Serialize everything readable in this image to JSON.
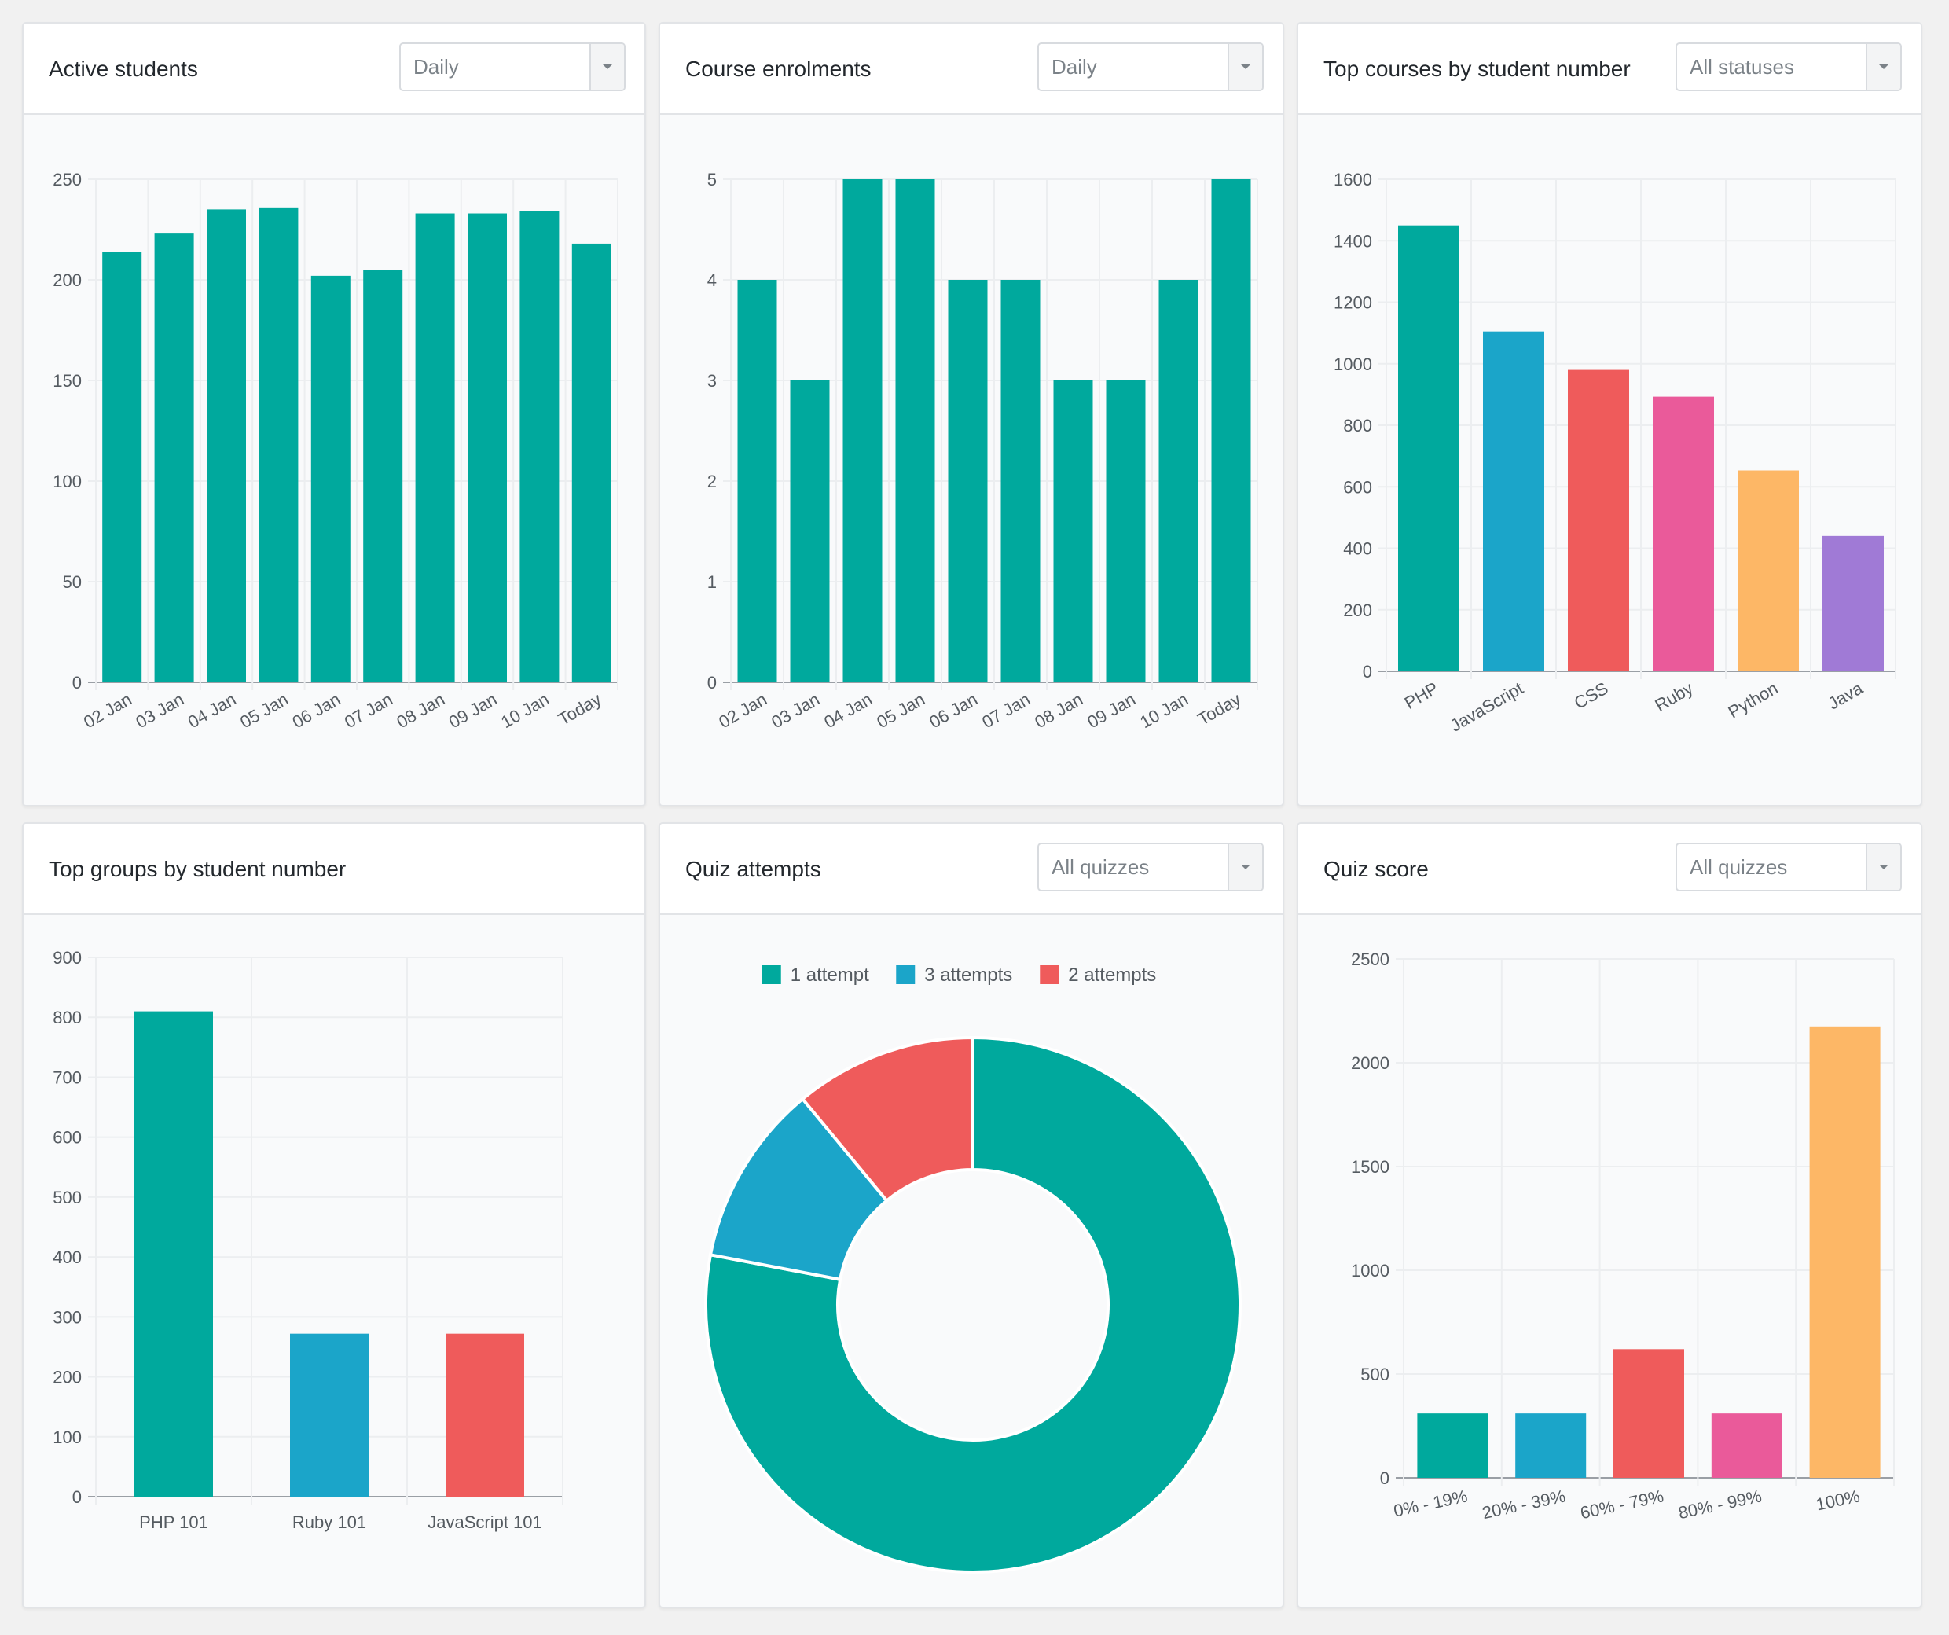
{
  "cards": [
    {
      "title": "Active students",
      "select": "Daily",
      "chart_data": {
        "type": "bar",
        "title": "Active students",
        "categories": [
          "02 Jan",
          "03 Jan",
          "04 Jan",
          "05 Jan",
          "06 Jan",
          "07 Jan",
          "08 Jan",
          "09 Jan",
          "10 Jan",
          "Today"
        ],
        "values": [
          214,
          223,
          235,
          236,
          202,
          205,
          233,
          233,
          234,
          218
        ],
        "ylim": [
          0,
          250
        ],
        "yticks": [
          0,
          50,
          100,
          150,
          200,
          250
        ],
        "colors": [
          "#00a99d"
        ],
        "grid": true,
        "xlabel_rotation": "diagonal"
      }
    },
    {
      "title": "Course enrolments",
      "select": "Daily",
      "chart_data": {
        "type": "bar",
        "title": "Course enrolments",
        "categories": [
          "02 Jan",
          "03 Jan",
          "04 Jan",
          "05 Jan",
          "06 Jan",
          "07 Jan",
          "08 Jan",
          "09 Jan",
          "10 Jan",
          "Today"
        ],
        "values": [
          4,
          3,
          5,
          5,
          4,
          4,
          3,
          3,
          4,
          5
        ],
        "ylim": [
          0,
          5
        ],
        "yticks": [
          0,
          1,
          2,
          3,
          4,
          5
        ],
        "colors": [
          "#00a99d"
        ],
        "grid": true,
        "xlabel_rotation": "diagonal"
      }
    },
    {
      "title": "Top courses by student number",
      "select": "All statuses",
      "chart_data": {
        "type": "bar",
        "title": "Top courses by student number",
        "categories": [
          "PHP",
          "JavaScript",
          "CSS",
          "Ruby",
          "Python",
          "Java"
        ],
        "values": [
          1450,
          1105,
          980,
          893,
          653,
          440
        ],
        "ylim": [
          0,
          1600
        ],
        "yticks": [
          0,
          200,
          400,
          600,
          800,
          1000,
          1200,
          1400,
          1600
        ],
        "colors": [
          "#00a99d",
          "#1ba5c9",
          "#ef5b5b",
          "#ea5a9a",
          "#fdb766",
          "#a07ad6"
        ],
        "grid": true,
        "xlabel_rotation": "diagonal"
      }
    },
    {
      "title": "Top groups by student number",
      "select": null,
      "chart_data": {
        "type": "bar",
        "title": "Top groups by student number",
        "categories": [
          "PHP 101",
          "Ruby 101",
          "JavaScript 101"
        ],
        "values": [
          810,
          272,
          272
        ],
        "ylim": [
          0,
          900
        ],
        "yticks": [
          0,
          100,
          200,
          300,
          400,
          500,
          600,
          700,
          800,
          900
        ],
        "colors": [
          "#00a99d",
          "#1ba5c9",
          "#ef5b5b"
        ],
        "grid": true,
        "xlabel_rotation": "horizontal"
      }
    },
    {
      "title": "Quiz attempts",
      "select": "All quizzes",
      "chart_data": {
        "type": "pie",
        "variant": "doughnut",
        "title": "Quiz attempts",
        "labels": [
          "1 attempt",
          "3 attempts",
          "2 attempts"
        ],
        "values": [
          78,
          11,
          11
        ],
        "colors": [
          "#00a99d",
          "#1ba5c9",
          "#ef5b5b"
        ],
        "legend_position": "top"
      }
    },
    {
      "title": "Quiz score",
      "select": "All quizzes",
      "chart_data": {
        "type": "bar",
        "title": "Quiz score",
        "categories": [
          "0% - 19%",
          "20% - 39%",
          "60% - 79%",
          "80% - 99%",
          "100%"
        ],
        "values": [
          310,
          310,
          620,
          310,
          2175
        ],
        "ylim": [
          0,
          2500
        ],
        "yticks": [
          0,
          500,
          1000,
          1500,
          2000,
          2500
        ],
        "colors": [
          "#00a99d",
          "#1ba5c9",
          "#ef5b5b",
          "#ea5a9a",
          "#fdb766"
        ],
        "grid": true,
        "xlabel_rotation": "slight"
      }
    }
  ]
}
